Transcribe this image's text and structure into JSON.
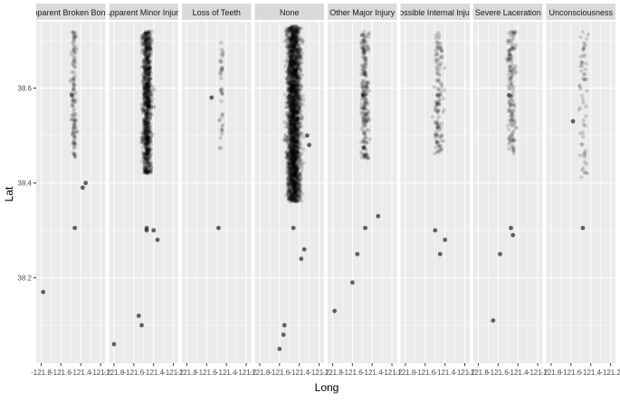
{
  "chart_data": {
    "type": "scatter",
    "faceted": true,
    "xlabel": "Long",
    "ylabel": "Lat",
    "x_ticks": [
      "-121.8",
      "-121.6",
      "-121.4",
      "-121.2"
    ],
    "y_ticks": [
      "38.2",
      "38.4",
      "38.6"
    ],
    "y_tick_values": [
      38.2,
      38.4,
      38.6
    ],
    "xlim": [
      -121.85,
      -121.15
    ],
    "ylim": [
      38.02,
      38.74
    ],
    "point_color": "#000000",
    "point_alpha": 0.15,
    "panel_bg": "#ebebeb",
    "strip_bg": "#d9d9d9",
    "grid_color": "#ffffff",
    "panels": [
      {
        "label": "Apparent Broken Bones",
        "density": 120,
        "core": {
          "lat": [
            38.45,
            38.72
          ],
          "lon": [
            -121.52,
            -121.42
          ]
        },
        "extra": [
          [
            -121.49,
            38.585
          ],
          [
            -121.46,
            38.305
          ],
          [
            -121.35,
            38.4
          ],
          [
            -121.78,
            38.17
          ],
          [
            -121.38,
            38.39
          ]
        ]
      },
      {
        "label": "Apparent Minor Injury",
        "density": 900,
        "core": {
          "lat": [
            38.42,
            38.72
          ],
          "lon": [
            -121.55,
            -121.38
          ]
        },
        "extra": [
          [
            -121.47,
            38.305
          ],
          [
            -121.47,
            38.3
          ],
          [
            -121.49,
            38.585
          ],
          [
            -121.55,
            38.12
          ],
          [
            -121.52,
            38.1
          ],
          [
            -121.8,
            38.06
          ],
          [
            -121.36,
            38.28
          ],
          [
            -121.4,
            38.3
          ]
        ]
      },
      {
        "label": "Loss of Teeth",
        "density": 40,
        "core": {
          "lat": [
            38.46,
            38.7
          ],
          "lon": [
            -121.5,
            -121.4
          ]
        },
        "extra": [
          [
            -121.48,
            38.305
          ],
          [
            -121.55,
            38.58
          ]
        ]
      },
      {
        "label": "None",
        "density": 2200,
        "core": {
          "lat": [
            38.36,
            38.73
          ],
          "lon": [
            -121.58,
            -121.33
          ]
        },
        "extra": [
          [
            -121.46,
            38.305
          ],
          [
            -121.55,
            38.1
          ],
          [
            -121.56,
            38.08
          ],
          [
            -121.6,
            38.05
          ],
          [
            -121.32,
            38.5
          ],
          [
            -121.3,
            38.48
          ],
          [
            -121.38,
            38.24
          ],
          [
            -121.35,
            38.26
          ]
        ]
      },
      {
        "label": "Other Major Injury",
        "density": 220,
        "core": {
          "lat": [
            38.45,
            38.72
          ],
          "lon": [
            -121.55,
            -121.4
          ]
        },
        "extra": [
          [
            -121.47,
            38.305
          ],
          [
            -121.49,
            38.585
          ],
          [
            -121.6,
            38.19
          ],
          [
            -121.78,
            38.13
          ],
          [
            -121.55,
            38.25
          ],
          [
            -121.34,
            38.33
          ]
        ]
      },
      {
        "label": "Possible Internal Injury",
        "density": 130,
        "core": {
          "lat": [
            38.46,
            38.72
          ],
          "lon": [
            -121.55,
            -121.38
          ]
        },
        "extra": [
          [
            -121.45,
            38.25
          ],
          [
            -121.4,
            38.28
          ],
          [
            -121.5,
            38.3
          ]
        ]
      },
      {
        "label": "Severe Laceration",
        "density": 150,
        "core": {
          "lat": [
            38.46,
            38.72
          ],
          "lon": [
            -121.55,
            -121.38
          ]
        },
        "extra": [
          [
            -121.47,
            38.305
          ],
          [
            -121.49,
            38.585
          ],
          [
            -121.65,
            38.11
          ],
          [
            -121.58,
            38.25
          ],
          [
            -121.45,
            38.29
          ]
        ]
      },
      {
        "label": "Unconsciousness",
        "density": 60,
        "core": {
          "lat": [
            38.41,
            38.72
          ],
          "lon": [
            -121.55,
            -121.4
          ]
        },
        "extra": [
          [
            -121.48,
            38.305
          ],
          [
            -121.58,
            38.53
          ]
        ]
      }
    ]
  }
}
